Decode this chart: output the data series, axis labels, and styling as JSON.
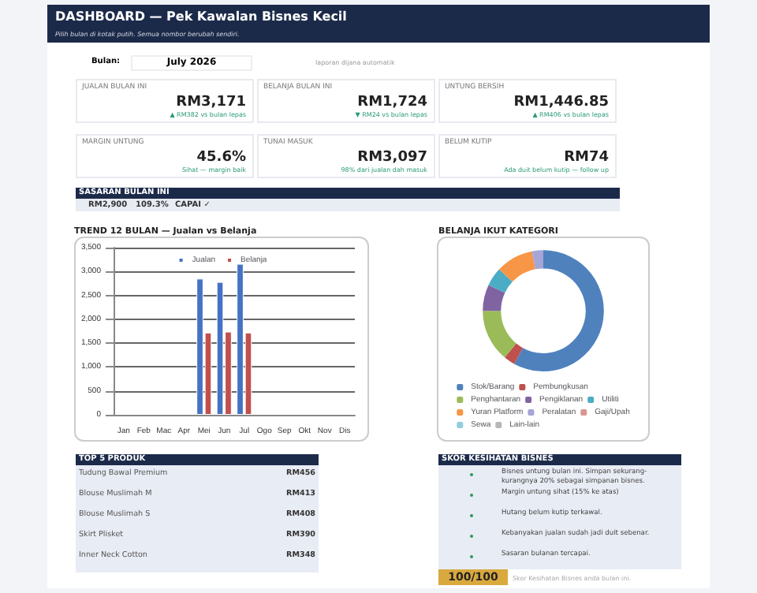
{
  "chart_data": [
    {
      "type": "other",
      "title": "DASHBOARD — Pek Kawalan Bisnes Kecil",
      "subtitle": "Pilih bulan di kotak putih. Semua nombor berubah sendiri.",
      "annotations": [
        "Bulan:",
        "July 2026",
        "laporan dijana automatik"
      ]
    },
    {
      "type": "other",
      "annotations": [
        "JUALAN BULAN INI",
        "RM3,171",
        "▲ RM382 vs bulan lepas",
        "BELANJA BULAN INI",
        "RM1,724",
        "▼ RM24 vs bulan lepas",
        "UNTUNG BERSIH",
        "RM1,446.85",
        "▲ RM406 vs bulan lepas",
        "MARGIN UNTUNG",
        "45.6%",
        "Sihat — margin baik",
        "TUNAI MASUK",
        "RM3,097",
        "98% dari jualan dah masuk",
        "BELUM KUTIP",
        "RM74",
        "Ada duit belum kutip — follow up"
      ]
    },
    {
      "type": "other",
      "title": "SASARAN BULAN INI",
      "annotations": [
        "RM2,900",
        "109.3%",
        "CAPAI ✓"
      ]
    },
    {
      "type": "bar",
      "title": "TREND 12 BULAN — Jualan vs Belanja",
      "categories": [
        "Jan",
        "Feb",
        "Mac",
        "Apr",
        "Mei",
        "Jun",
        "Jul",
        "Ogo",
        "Sep",
        "Okt",
        "Nov",
        "Dis"
      ],
      "series": [
        {
          "name": "Jualan",
          "color": "#4472c4",
          "values": [
            null,
            null,
            null,
            null,
            2850,
            2780,
            3160,
            null,
            null,
            null,
            null,
            null
          ]
        },
        {
          "name": "Belanja",
          "color": "#c0504d",
          "values": [
            null,
            null,
            null,
            null,
            1720,
            1740,
            1720,
            null,
            null,
            null,
            null,
            null
          ]
        }
      ],
      "ylim": [
        0,
        3500
      ],
      "yticks": [
        0,
        500,
        {
          "value": 1000,
          "label": "1,000"
        },
        {
          "value": 1500,
          "label": "1,500"
        },
        {
          "value": 2000,
          "label": "2,000"
        },
        {
          "value": 2500,
          "label": "2,500"
        },
        {
          "value": 3000,
          "label": "3,000"
        },
        {
          "value": 3500,
          "label": "3,500"
        }
      ],
      "grid": "y",
      "legend": "top"
    },
    {
      "type": "donut",
      "title": "BELANJA IKUT KATEGORI",
      "categories": [
        "Stok/Barang",
        "Pembungkusan",
        "Penghantaran",
        "Pengiklanan",
        "Utiliti",
        "Yuran Platform",
        "Peralatan",
        "Gaji/Upah",
        "Sewa",
        "Lain-lain"
      ],
      "values": [
        58,
        3,
        14,
        7,
        5,
        10,
        3,
        0,
        0,
        0
      ],
      "colors": [
        "#4f81bd",
        "#c0504d",
        "#9bbb59",
        "#8064a2",
        "#4bacc6",
        "#f79646",
        "#a5a5d8",
        "#d99694",
        "#93cddd",
        "#b7b7b7"
      ],
      "legend": "bottom"
    },
    {
      "type": "other",
      "title": "TOP 5 PRODUK",
      "annotations": [
        "Tudung Bawal Premium",
        "RM456",
        "Blouse Muslimah M",
        "RM413",
        "Blouse Muslimah S",
        "RM408",
        "Skirt Plisket",
        "RM390",
        "Inner Neck Cotton",
        "RM348"
      ]
    },
    {
      "type": "other",
      "title": "SKOR KESIHATAN BISNES",
      "annotations": [
        "Bisnes untung bulan ini. Simpan sekurang-kurangnya 20% sebagai simpanan bisnes.",
        "Margin untung sihat (15% ke atas)",
        "Hutang belum kutip terkawal.",
        "Kebanyakan jualan sudah jadi duit sebenar.",
        "Sasaran bulanan tercapai.",
        "100/100",
        "Skor Kesihatan Bisnes anda bulan ini."
      ]
    }
  ]
}
